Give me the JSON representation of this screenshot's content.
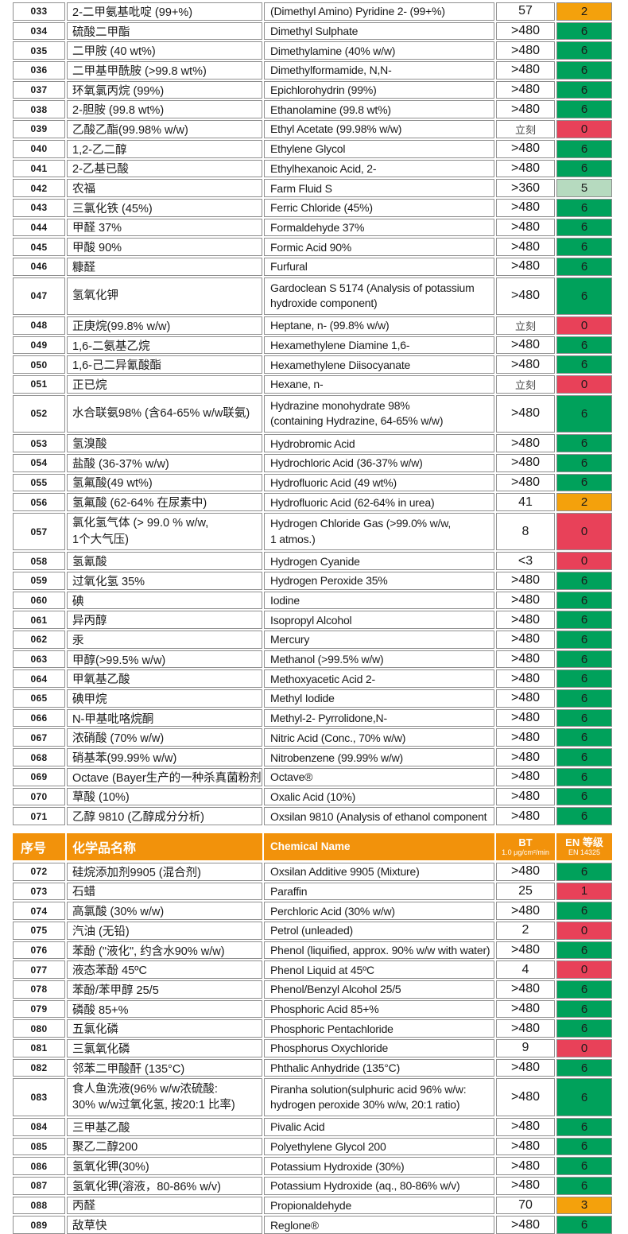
{
  "colors": {
    "green": "#00A15B",
    "light_green": "#B6DABF",
    "orange": "#F4A10C",
    "red": "#E84159",
    "header_orange": "#F2920B"
  },
  "header": {
    "col_no": "序号",
    "col_cn": "化学品名称",
    "col_en": "Chemical Name",
    "bt_line1": "BT",
    "bt_line2": "1.0 μg/cm²/min",
    "en_line1": "EN 等级",
    "en_line2": "EN 14325"
  },
  "table1": {
    "rows": [
      {
        "no": "033",
        "cn": "2-二甲氨基吡啶 (99+%)",
        "en": "(Dimethyl Amino) Pyridine 2- (99+%)",
        "bt": "57",
        "rating": "2",
        "level": "orange"
      },
      {
        "no": "034",
        "cn": "硫酸二甲酯",
        "en": "Dimethyl Sulphate",
        "bt": ">480",
        "rating": "6",
        "level": "green"
      },
      {
        "no": "035",
        "cn": "二甲胺 (40 wt%)",
        "en": "Dimethylamine (40% w/w)",
        "bt": ">480",
        "rating": "6",
        "level": "green"
      },
      {
        "no": "036",
        "cn": "二甲基甲酰胺 (>99.8 wt%)",
        "en": "Dimethylformamide, N,N-",
        "bt": ">480",
        "rating": "6",
        "level": "green"
      },
      {
        "no": "037",
        "cn": "环氧氯丙烷 (99%)",
        "en": "Epichlorohydrin (99%)",
        "bt": ">480",
        "rating": "6",
        "level": "green"
      },
      {
        "no": "038",
        "cn": "2-胆胺 (99.8 wt%)",
        "en": "Ethanolamine (99.8 wt%)",
        "bt": ">480",
        "rating": "6",
        "level": "green"
      },
      {
        "no": "039",
        "cn": "乙酸乙酯(99.98% w/w)",
        "en": "Ethyl Acetate (99.98% w/w)",
        "bt": "立刻",
        "rating": "0",
        "level": "red"
      },
      {
        "no": "040",
        "cn": "1,2-乙二醇",
        "en": "Ethylene Glycol",
        "bt": ">480",
        "rating": "6",
        "level": "green"
      },
      {
        "no": "041",
        "cn": "2-乙基已酸",
        "en": "Ethylhexanoic Acid, 2-",
        "bt": ">480",
        "rating": "6",
        "level": "green"
      },
      {
        "no": "042",
        "cn": "农福",
        "en": "Farm Fluid S",
        "bt": ">360",
        "rating": "5",
        "level": "light_green"
      },
      {
        "no": "043",
        "cn": "三氯化铁 (45%)",
        "en": "Ferric Chloride (45%)",
        "bt": ">480",
        "rating": "6",
        "level": "green"
      },
      {
        "no": "044",
        "cn": "甲醛 37%",
        "en": "Formaldehyde 37%",
        "bt": ">480",
        "rating": "6",
        "level": "green"
      },
      {
        "no": "045",
        "cn": "甲酸 90%",
        "en": "Formic Acid 90%",
        "bt": ">480",
        "rating": "6",
        "level": "green"
      },
      {
        "no": "046",
        "cn": "糠醛",
        "en": "Furfural",
        "bt": ">480",
        "rating": "6",
        "level": "green"
      },
      {
        "no": "047",
        "cn": "氢氧化钾",
        "en": "Gardoclean S 5174 (Analysis of potassium\nhydroxide component)",
        "bt": ">480",
        "rating": "6",
        "level": "green",
        "tall": true
      },
      {
        "no": "048",
        "cn": "正庚烷(99.8% w/w)",
        "en": "Heptane, n- (99.8% w/w)",
        "bt": "立刻",
        "rating": "0",
        "level": "red"
      },
      {
        "no": "049",
        "cn": "1,6-二氨基乙烷",
        "en": "Hexamethylene Diamine 1,6-",
        "bt": ">480",
        "rating": "6",
        "level": "green"
      },
      {
        "no": "050",
        "cn": "1,6-己二异氰酸酯",
        "en": "Hexamethylene Diisocyanate",
        "bt": ">480",
        "rating": "6",
        "level": "green"
      },
      {
        "no": "051",
        "cn": "正已烷",
        "en": "Hexane, n-",
        "bt": "立刻",
        "rating": "0",
        "level": "red"
      },
      {
        "no": "052",
        "cn": "水合联氨98% (含64-65% w/w联氨)",
        "en": "Hydrazine monohydrate 98%\n(containing Hydrazine, 64-65% w/w)",
        "bt": ">480",
        "rating": "6",
        "level": "green",
        "tall": true
      },
      {
        "no": "053",
        "cn": "氢溴酸",
        "en": "Hydrobromic Acid",
        "bt": ">480",
        "rating": "6",
        "level": "green"
      },
      {
        "no": "054",
        "cn": "盐酸 (36-37% w/w)",
        "en": "Hydrochloric Acid (36-37% w/w)",
        "bt": ">480",
        "rating": "6",
        "level": "green"
      },
      {
        "no": "055",
        "cn": "氢氟酸(49 wt%)",
        "en": "Hydrofluoric Acid (49 wt%)",
        "bt": ">480",
        "rating": "6",
        "level": "green"
      },
      {
        "no": "056",
        "cn": "氢氟酸 (62-64% 在尿素中)",
        "en": "Hydrofluoric Acid (62-64% in urea)",
        "bt": "41",
        "rating": "2",
        "level": "orange"
      },
      {
        "no": "057",
        "cn": "氯化氢气体 (> 99.0 % w/w,\n1个大气压)",
        "en": "Hydrogen Chloride Gas (>99.0% w/w,\n1 atmos.)",
        "bt": "8",
        "rating": "0",
        "level": "red",
        "tall": true
      },
      {
        "no": "058",
        "cn": "氢氰酸",
        "en": "Hydrogen Cyanide",
        "bt": "<3",
        "rating": "0",
        "level": "red"
      },
      {
        "no": "059",
        "cn": "过氧化氢 35%",
        "en": "Hydrogen Peroxide 35%",
        "bt": ">480",
        "rating": "6",
        "level": "green"
      },
      {
        "no": "060",
        "cn": "碘",
        "en": "Iodine",
        "bt": ">480",
        "rating": "6",
        "level": "green"
      },
      {
        "no": "061",
        "cn": "异丙醇",
        "en": "Isopropyl Alcohol",
        "bt": ">480",
        "rating": "6",
        "level": "green"
      },
      {
        "no": "062",
        "cn": "汞",
        "en": "Mercury",
        "bt": ">480",
        "rating": "6",
        "level": "green"
      },
      {
        "no": "063",
        "cn": "甲醇(>99.5% w/w)",
        "en": "Methanol (>99.5% w/w)",
        "bt": ">480",
        "rating": "6",
        "level": "green"
      },
      {
        "no": "064",
        "cn": "甲氧基乙酸",
        "en": "Methoxyacetic Acid 2-",
        "bt": ">480",
        "rating": "6",
        "level": "green"
      },
      {
        "no": "065",
        "cn": "碘甲烷",
        "en": "Methyl Iodide",
        "bt": ">480",
        "rating": "6",
        "level": "green"
      },
      {
        "no": "066",
        "cn": "N-甲基吡咯烷酮",
        "en": "Methyl-2- Pyrrolidone,N-",
        "bt": ">480",
        "rating": "6",
        "level": "green"
      },
      {
        "no": "067",
        "cn": "浓硝酸 (70% w/w)",
        "en": "Nitric Acid (Conc., 70% w/w)",
        "bt": ">480",
        "rating": "6",
        "level": "green"
      },
      {
        "no": "068",
        "cn": "硝基苯(99.99% w/w)",
        "en": "Nitrobenzene (99.99% w/w)",
        "bt": ">480",
        "rating": "6",
        "level": "green"
      },
      {
        "no": "069",
        "cn": "Octave (Bayer生产的一种杀真菌粉剂)",
        "en": "Octave®",
        "bt": ">480",
        "rating": "6",
        "level": "green"
      },
      {
        "no": "070",
        "cn": "草酸 (10%)",
        "en": "Oxalic Acid (10%)",
        "bt": ">480",
        "rating": "6",
        "level": "green"
      },
      {
        "no": "071",
        "cn": "乙醇 9810 (乙醇成分分析)",
        "en": "Oxsilan 9810 (Analysis of ethanol component",
        "bt": ">480",
        "rating": "6",
        "level": "green"
      }
    ]
  },
  "table2": {
    "rows": [
      {
        "no": "072",
        "cn": "硅烷添加剂9905 (混合剂)",
        "en": "Oxsilan Additive 9905 (Mixture)",
        "bt": ">480",
        "rating": "6",
        "level": "green"
      },
      {
        "no": "073",
        "cn": "石蜡",
        "en": "Paraffin",
        "bt": "25",
        "rating": "1",
        "level": "red"
      },
      {
        "no": "074",
        "cn": "高氯酸 (30% w/w)",
        "en": "Perchloric Acid (30% w/w)",
        "bt": ">480",
        "rating": "6",
        "level": "green"
      },
      {
        "no": "075",
        "cn": "汽油 (无铅)",
        "en": "Petrol (unleaded)",
        "bt": "2",
        "rating": "0",
        "level": "red"
      },
      {
        "no": "076",
        "cn": "苯酚 (\"液化\", 约含水90% w/w)",
        "en": "Phenol (liquified, approx. 90% w/w with water)",
        "bt": ">480",
        "rating": "6",
        "level": "green"
      },
      {
        "no": "077",
        "cn": "液态苯酚 45ºC",
        "en": "Phenol Liquid at 45ºC",
        "bt": "4",
        "rating": "0",
        "level": "red"
      },
      {
        "no": "078",
        "cn": "苯酚/苯甲醇 25/5",
        "en": "Phenol/Benzyl Alcohol 25/5",
        "bt": ">480",
        "rating": "6",
        "level": "green"
      },
      {
        "no": "079",
        "cn": "磷酸 85+%",
        "en": "Phosphoric Acid 85+%",
        "bt": ">480",
        "rating": "6",
        "level": "green"
      },
      {
        "no": "080",
        "cn": "五氯化磷",
        "en": "Phosphoric Pentachloride",
        "bt": ">480",
        "rating": "6",
        "level": "green"
      },
      {
        "no": "081",
        "cn": "三氯氧化磷",
        "en": "Phosphorus Oxychloride",
        "bt": "9",
        "rating": "0",
        "level": "red"
      },
      {
        "no": "082",
        "cn": "邻苯二甲酸酐 (135°C)",
        "en": "Phthalic Anhydride (135°C)",
        "bt": ">480",
        "rating": "6",
        "level": "green"
      },
      {
        "no": "083",
        "cn": "食人鱼洗液(96% w/w浓硫酸:\n30% w/w过氧化氢, 按20:1 比率)",
        "en": "Piranha solution(sulphuric acid 96% w/w:\nhydrogen peroxide 30% w/w, 20:1 ratio)",
        "bt": ">480",
        "rating": "6",
        "level": "green",
        "tall": true
      },
      {
        "no": "084",
        "cn": "三甲基乙酸",
        "en": "Pivalic Acid",
        "bt": ">480",
        "rating": "6",
        "level": "green"
      },
      {
        "no": "085",
        "cn": "聚乙二醇200",
        "en": "Polyethylene Glycol 200",
        "bt": ">480",
        "rating": "6",
        "level": "green"
      },
      {
        "no": "086",
        "cn": "氢氧化钾(30%)",
        "en": "Potassium Hydroxide (30%)",
        "bt": ">480",
        "rating": "6",
        "level": "green"
      },
      {
        "no": "087",
        "cn": "氢氧化钾(溶液，80-86% w/v)",
        "en": "Potassium Hydroxide (aq., 80-86% w/v)",
        "bt": ">480",
        "rating": "6",
        "level": "green"
      },
      {
        "no": "088",
        "cn": "丙醛",
        "en": "Propionaldehyde",
        "bt": "70",
        "rating": "3",
        "level": "orange"
      },
      {
        "no": "089",
        "cn": "敌草快",
        "en": "Reglone®",
        "bt": ">480",
        "rating": "6",
        "level": "green"
      }
    ]
  }
}
